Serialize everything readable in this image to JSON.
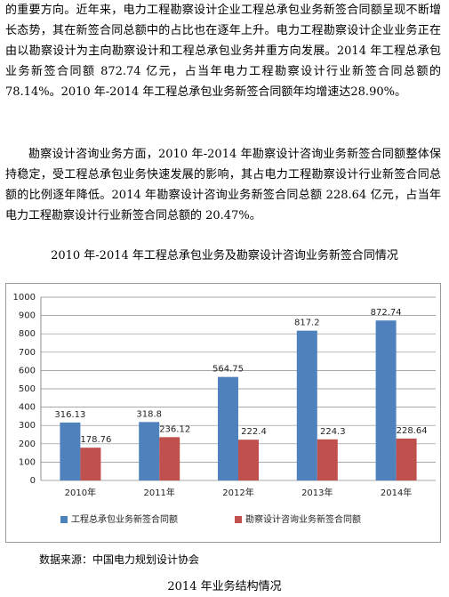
{
  "paragraphs": [
    "的重要方向。近年来，电力工程勘察设计企业工程总承包业务新签合同额呈现不断增长态势，其在新签合同总额中的占比也在逐年上升。电力工程勘察设计企业业务正在由以勘察设计为主向勘察设计和工程总承包业务并重方向发展。2014 年工程总承包业务新签合同额 872.74 亿元，占当年电力工程勘察设计行业新签合同总额的 78.14%。2010 年-2014 年工程总承包业务新签合同额年均增速达28.90%。",
    "勘察设计咨询业务方面，2010 年-2014 年勘察设计咨询业务新签合同额整体保持稳定，受工程总承包业务快速发展的影响，其占电力工程勘察设计行业新签合同总额的比例逐年降低。2014 年勘察设计咨询业务新签合同总额 228.64 亿元，占当年电力工程勘察设计行业新签合同总额的 20.47%。"
  ],
  "chart_data": {
    "type": "bar",
    "title": "2010 年-2014 年工程总承包业务及勘察设计咨询业务新签合同情况",
    "categories": [
      "2010年",
      "2011年",
      "2012年",
      "2013年",
      "2014年"
    ],
    "series": [
      {
        "name": "工程总承包业务新签合同额",
        "color": "#4f81bd",
        "values": [
          316.13,
          318.8,
          564.75,
          817.2,
          872.74
        ]
      },
      {
        "name": "勘察设计咨询业务新签合同额",
        "color": "#c0504d",
        "values": [
          178.76,
          236.12,
          222.4,
          224.3,
          228.64
        ]
      }
    ],
    "ylim": [
      0,
      1000
    ],
    "yticks": [
      0,
      100,
      200,
      300,
      400,
      500,
      600,
      700,
      800,
      900,
      1000
    ],
    "grid": true,
    "legend": "bottom"
  },
  "source": "数据来源：中国电力规划设计协会",
  "next_caption": "2014 年业务结构情况"
}
